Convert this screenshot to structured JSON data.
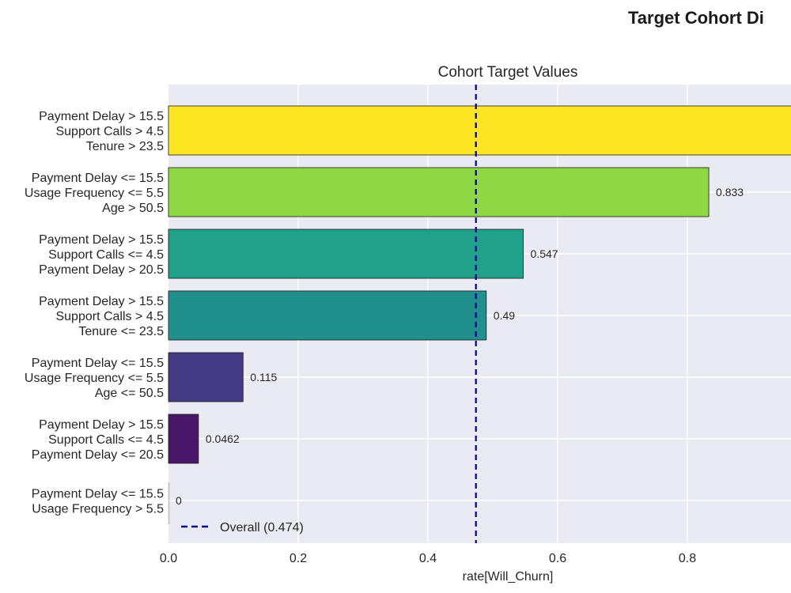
{
  "figure": {
    "title": "Target Cohort Di"
  },
  "chart_data": {
    "type": "bar",
    "orientation": "horizontal",
    "title": "Cohort Target Values",
    "xlabel": "rate[Will_Churn]",
    "ylabel": "",
    "xlim": [
      0,
      0.96
    ],
    "x_ticks": [
      "0.0",
      "0.2",
      "0.4",
      "0.6",
      "0.8"
    ],
    "grid": true,
    "categories": [
      [
        "Payment Delay > 15.5",
        "Support Calls > 4.5",
        "Tenure > 23.5"
      ],
      [
        "Payment Delay <= 15.5",
        "Usage Frequency <= 5.5",
        "Age > 50.5"
      ],
      [
        "Payment Delay > 15.5",
        "Support Calls <= 4.5",
        "Payment Delay > 20.5"
      ],
      [
        "Payment Delay > 15.5",
        "Support Calls > 4.5",
        "Tenure <= 23.5"
      ],
      [
        "Payment Delay <= 15.5",
        "Usage Frequency <= 5.5",
        "Age <= 50.5"
      ],
      [
        "Payment Delay > 15.5",
        "Support Calls <= 4.5",
        "Payment Delay <= 20.5"
      ],
      [
        "Payment Delay <= 15.5",
        "Usage Frequency > 5.5"
      ]
    ],
    "values": [
      1.0,
      0.833,
      0.547,
      0.49,
      0.115,
      0.0462,
      0
    ],
    "value_labels": [
      "",
      "0.833",
      "0.547",
      "0.49",
      "0.115",
      "0.0462",
      "0"
    ],
    "colors": [
      "#fde725",
      "#8fd744",
      "#21a08a",
      "#21908d",
      "#443983",
      "#481769",
      "#440154"
    ],
    "reference_line": {
      "value": 0.474,
      "label": "Overall (0.474)",
      "color": "#00008b",
      "style": "dashed"
    },
    "legend": {
      "position": "lower-left"
    }
  }
}
